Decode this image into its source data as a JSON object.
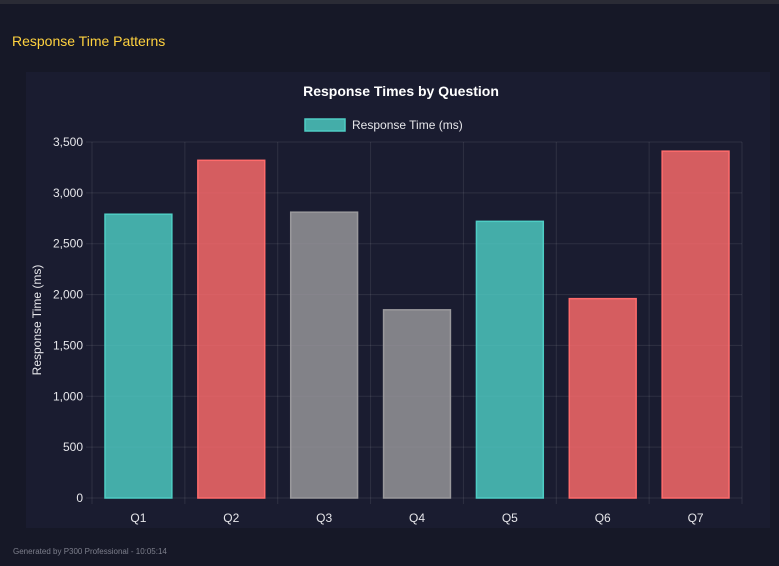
{
  "section_title": "Response Time Patterns",
  "footer": "Generated by P300 Professional - 10:05:14",
  "colors": {
    "teal": "#4ecdc4",
    "red": "#ff6b6b",
    "gray": "#9a999c",
    "title": "#ffd23f"
  },
  "chart_data": {
    "type": "bar",
    "title": "Response Times by Question",
    "xlabel": "",
    "ylabel": "Response Time (ms)",
    "categories": [
      "Q1",
      "Q2",
      "Q3",
      "Q4",
      "Q5",
      "Q6",
      "Q7"
    ],
    "series": [
      {
        "name": "Response Time (ms)",
        "values": [
          2790,
          3320,
          2810,
          1850,
          2720,
          1960,
          3410
        ]
      }
    ],
    "bar_colors": [
      "teal",
      "red",
      "gray",
      "gray",
      "teal",
      "red",
      "red"
    ],
    "ylim": [
      0,
      3500
    ],
    "yticks": [
      0,
      500,
      1000,
      1500,
      2000,
      2500,
      3000,
      3500
    ],
    "ytick_labels": [
      "0",
      "500",
      "1,000",
      "1,500",
      "2,000",
      "2,500",
      "3,000",
      "3,500"
    ],
    "grid": true,
    "legend": "top"
  }
}
